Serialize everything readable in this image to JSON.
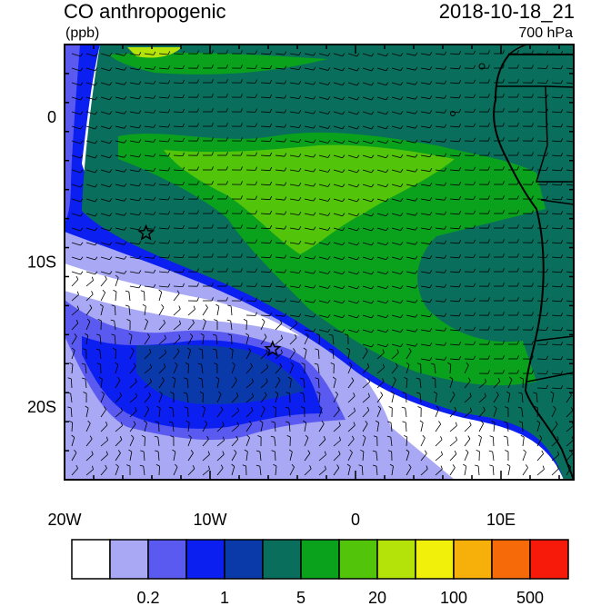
{
  "header": {
    "title": "CO anthropogenic",
    "units": "(ppb)",
    "datetime": "2018-10-18_21",
    "level": "700 hPa"
  },
  "map": {
    "lon_range": [
      -20,
      15
    ],
    "lat_range": [
      -25,
      5
    ],
    "x_ticks": [
      {
        "lon": -20,
        "label": "20W"
      },
      {
        "lon": -10,
        "label": "10W"
      },
      {
        "lon": 0,
        "label": "0"
      },
      {
        "lon": 10,
        "label": "10E"
      }
    ],
    "y_ticks": [
      {
        "lat": 0,
        "label": "0"
      },
      {
        "lat": -10,
        "label": "10S"
      },
      {
        "lat": -20,
        "label": "20S"
      }
    ],
    "markers": [
      {
        "name": "star-marker-1",
        "lon": -14.4,
        "lat": -8.0
      },
      {
        "name": "star-marker-2",
        "lon": -5.7,
        "lat": -16.0
      }
    ]
  },
  "colorbar": {
    "colors": [
      "#ffffff",
      "#a8a8f5",
      "#5a5af0",
      "#0b1ff0",
      "#0a3aaa",
      "#0a6e5c",
      "#0aa21c",
      "#52c40a",
      "#b4e30a",
      "#f0f00a",
      "#f7b00a",
      "#f76a0a",
      "#f71a0a"
    ],
    "labels": [
      {
        "after_box": 2,
        "text": "0.2"
      },
      {
        "after_box": 4,
        "text": "1"
      },
      {
        "after_box": 6,
        "text": "5"
      },
      {
        "after_box": 8,
        "text": "20"
      },
      {
        "after_box": 10,
        "text": "100"
      },
      {
        "after_box": 12,
        "text": "500"
      }
    ]
  }
}
